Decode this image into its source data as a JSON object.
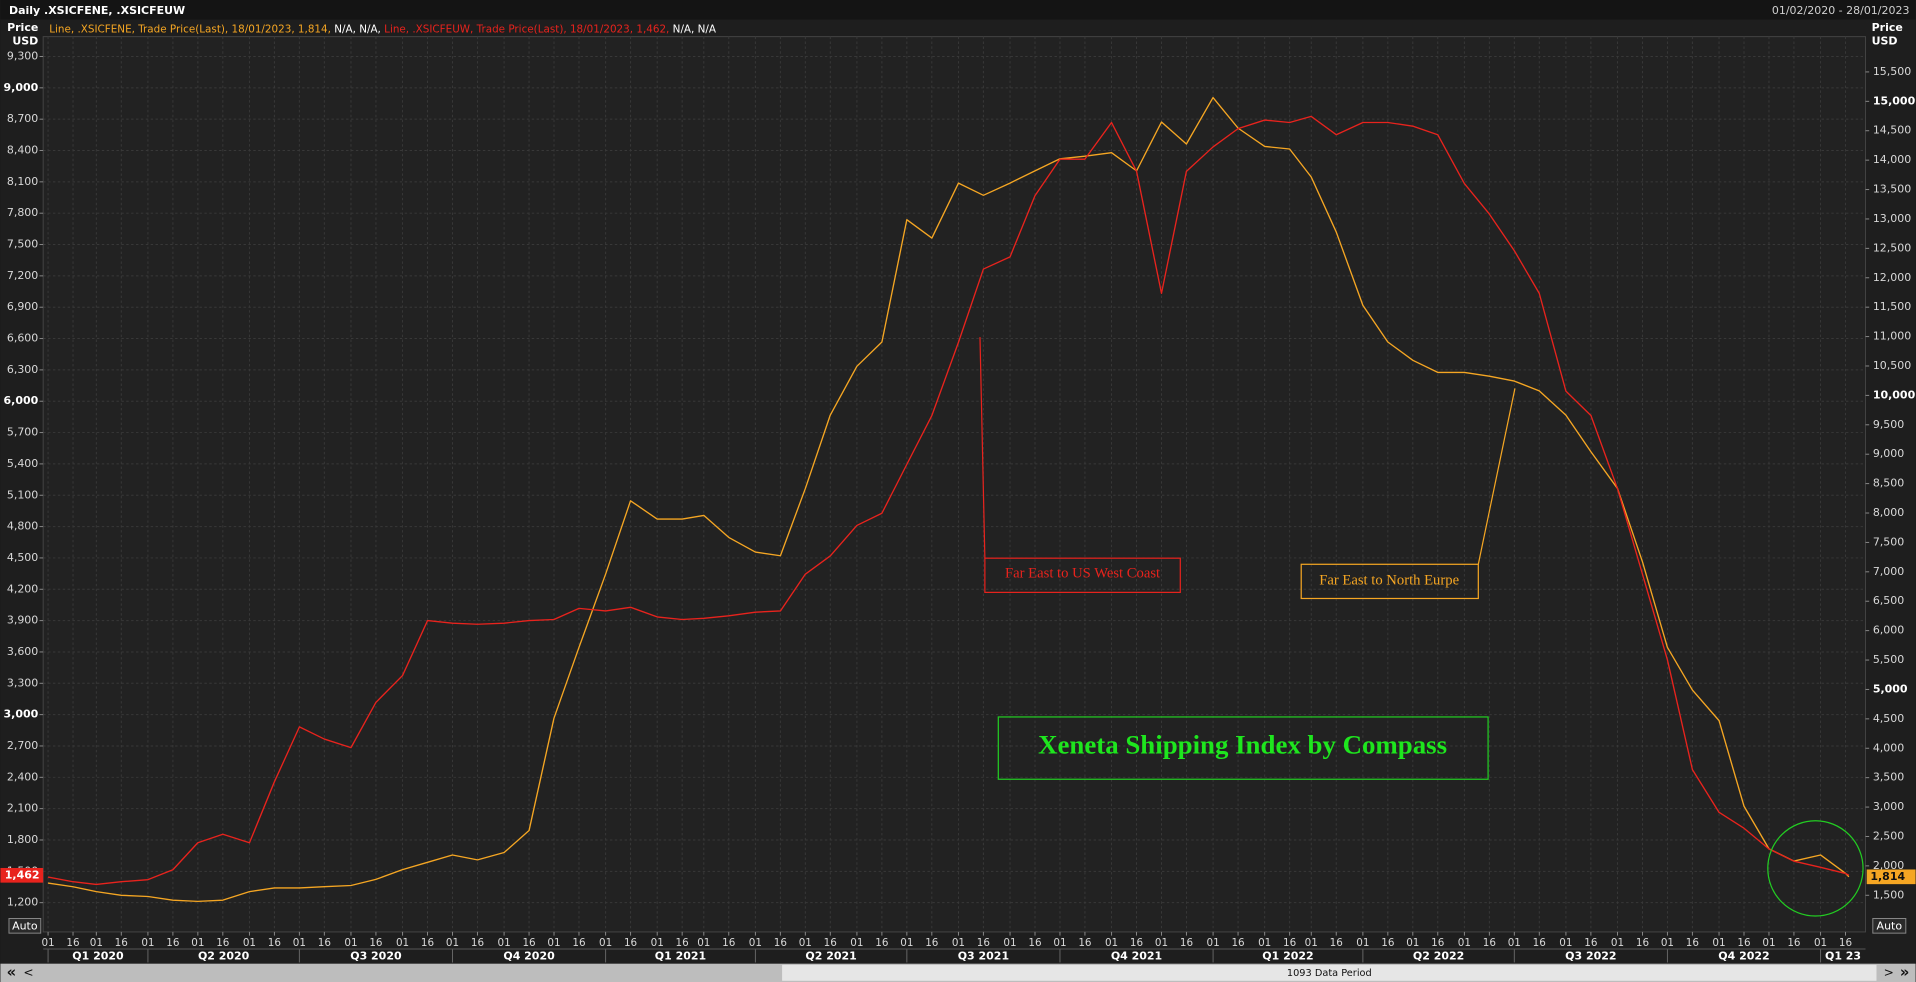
{
  "chart_data": {
    "type": "line",
    "title": "Daily .XSICFENE, .XSICFEUW",
    "date_range": "01/02/2020 - 28/01/2023",
    "ylabel": [
      "Price",
      "USD"
    ],
    "y2label": [
      "Price",
      "USD"
    ],
    "grid": true,
    "xlim": [
      "2020-02-01",
      "2023-01-28"
    ],
    "ylim": [
      920,
      9490
    ],
    "y2lim": [
      877,
      16100
    ],
    "x": [
      "2020-02-01",
      "2020-02-16",
      "2020-03-01",
      "2020-03-16",
      "2020-04-01",
      "2020-04-16",
      "2020-05-01",
      "2020-05-16",
      "2020-06-01",
      "2020-06-16",
      "2020-07-01",
      "2020-07-16",
      "2020-08-01",
      "2020-08-16",
      "2020-09-01",
      "2020-09-16",
      "2020-10-01",
      "2020-10-16",
      "2020-11-01",
      "2020-11-16",
      "2020-12-01",
      "2020-12-16",
      "2021-01-01",
      "2021-01-16",
      "2021-02-01",
      "2021-02-16",
      "2021-03-01",
      "2021-03-16",
      "2021-04-01",
      "2021-04-16",
      "2021-05-01",
      "2021-05-16",
      "2021-06-01",
      "2021-06-16",
      "2021-07-01",
      "2021-07-16",
      "2021-08-01",
      "2021-08-16",
      "2021-09-01",
      "2021-09-16",
      "2021-10-01",
      "2021-10-16",
      "2021-11-01",
      "2021-11-16",
      "2021-12-01",
      "2021-12-16",
      "2022-01-01",
      "2022-01-16",
      "2022-02-01",
      "2022-02-16",
      "2022-03-01",
      "2022-03-16",
      "2022-04-01",
      "2022-04-16",
      "2022-05-01",
      "2022-05-16",
      "2022-06-01",
      "2022-06-16",
      "2022-07-01",
      "2022-07-16",
      "2022-08-01",
      "2022-08-16",
      "2022-09-01",
      "2022-09-16",
      "2022-10-01",
      "2022-10-16",
      "2022-11-01",
      "2022-11-16",
      "2022-12-01",
      "2022-12-16",
      "2023-01-01",
      "2023-01-16",
      "2023-01-18"
    ],
    "series": [
      {
        "name": "Line, .XSICFENE, Trade Price(Last), 18/01/2023, 1,814,",
        "legend_suffix": "N/A, N/A,",
        "color": "#f5a623",
        "axis": "y2",
        "last_label": "1,814",
        "values": [
          1708,
          1645,
          1562,
          1500,
          1479,
          1417,
          1396,
          1417,
          1562,
          1625,
          1625,
          1645,
          1666,
          1770,
          1936,
          2061,
          2185,
          2102,
          2227,
          2601,
          4512,
          5716,
          6963,
          8209,
          7897,
          7897,
          7959,
          7586,
          7336,
          7274,
          8416,
          9663,
          10494,
          10909,
          12986,
          12675,
          13609,
          13402,
          13609,
          13817,
          14024,
          14066,
          14128,
          13817,
          14648,
          14274,
          15063,
          14544,
          14232,
          14190,
          13713,
          12778,
          11532,
          10909,
          10597,
          10390,
          10390,
          10327,
          10244,
          10078,
          9663,
          9040,
          8416,
          7170,
          5716,
          4989,
          4470,
          3016,
          2289,
          2082,
          2185,
          1874,
          1814
        ]
      },
      {
        "name": "Line, .XSICFEUW, Trade Price(Last), 18/01/2023, 1,462,",
        "legend_suffix": "N/A, N/A",
        "color": "#e8231d",
        "last_label": "1,462",
        "values": [
          1445,
          1400,
          1375,
          1400,
          1420,
          1515,
          1773,
          1855,
          1773,
          2357,
          2883,
          2766,
          2684,
          3117,
          3374,
          3900,
          3876,
          3865,
          3876,
          3900,
          3911,
          4017,
          3993,
          4028,
          3935,
          3911,
          3923,
          3946,
          3981,
          3993,
          4344,
          4519,
          4811,
          4928,
          5396,
          5863,
          6565,
          7265,
          7382,
          7967,
          8317,
          8317,
          8668,
          8200,
          7032,
          8200,
          8434,
          8610,
          8691,
          8668,
          8726,
          8551,
          8668,
          8668,
          8633,
          8551,
          8084,
          7792,
          7441,
          7032,
          6097,
          5863,
          5162,
          4344,
          3526,
          2474,
          2065,
          1913,
          1714,
          1597,
          1539,
          1480,
          1462
        ]
      }
    ],
    "yticks": [
      {
        "value": 1200,
        "label": "1,200"
      },
      {
        "value": 1500,
        "label": "1,500"
      },
      {
        "value": 1800,
        "label": "1,800"
      },
      {
        "value": 2100,
        "label": "2,100"
      },
      {
        "value": 2400,
        "label": "2,400"
      },
      {
        "value": 2700,
        "label": "2,700"
      },
      {
        "value": 3000,
        "label": "3,000",
        "bold": true
      },
      {
        "value": 3300,
        "label": "3,300"
      },
      {
        "value": 3600,
        "label": "3,600"
      },
      {
        "value": 3900,
        "label": "3,900"
      },
      {
        "value": 4200,
        "label": "4,200"
      },
      {
        "value": 4500,
        "label": "4,500"
      },
      {
        "value": 4800,
        "label": "4,800"
      },
      {
        "value": 5100,
        "label": "5,100"
      },
      {
        "value": 5400,
        "label": "5,400"
      },
      {
        "value": 5700,
        "label": "5,700"
      },
      {
        "value": 6000,
        "label": "6,000",
        "bold": true
      },
      {
        "value": 6300,
        "label": "6,300"
      },
      {
        "value": 6600,
        "label": "6,600"
      },
      {
        "value": 6900,
        "label": "6,900"
      },
      {
        "value": 7200,
        "label": "7,200"
      },
      {
        "value": 7500,
        "label": "7,500"
      },
      {
        "value": 7800,
        "label": "7,800"
      },
      {
        "value": 8100,
        "label": "8,100"
      },
      {
        "value": 8400,
        "label": "8,400"
      },
      {
        "value": 8700,
        "label": "8,700"
      },
      {
        "value": 9000,
        "label": "9,000",
        "bold": true
      },
      {
        "value": 9300,
        "label": "9,300"
      }
    ],
    "y2ticks": [
      {
        "value": 1500,
        "label": "1,500"
      },
      {
        "value": 2000,
        "label": "2,000"
      },
      {
        "value": 2500,
        "label": "2,500"
      },
      {
        "value": 3000,
        "label": "3,000"
      },
      {
        "value": 3500,
        "label": "3,500"
      },
      {
        "value": 4000,
        "label": "4,000"
      },
      {
        "value": 4500,
        "label": "4,500"
      },
      {
        "value": 5000,
        "label": "5,000",
        "bold": true
      },
      {
        "value": 5500,
        "label": "5,500"
      },
      {
        "value": 6000,
        "label": "6,000"
      },
      {
        "value": 6500,
        "label": "6,500"
      },
      {
        "value": 7000,
        "label": "7,000"
      },
      {
        "value": 7500,
        "label": "7,500"
      },
      {
        "value": 8000,
        "label": "8,000"
      },
      {
        "value": 8500,
        "label": "8,500"
      },
      {
        "value": 9000,
        "label": "9,000"
      },
      {
        "value": 9500,
        "label": "9,500"
      },
      {
        "value": 10000,
        "label": "10,000",
        "bold": true
      },
      {
        "value": 10500,
        "label": "10,500"
      },
      {
        "value": 11000,
        "label": "11,000"
      },
      {
        "value": 11500,
        "label": "11,500"
      },
      {
        "value": 12000,
        "label": "12,000"
      },
      {
        "value": 12500,
        "label": "12,500"
      },
      {
        "value": 13000,
        "label": "13,000"
      },
      {
        "value": 13500,
        "label": "13,500"
      },
      {
        "value": 14000,
        "label": "14,000"
      },
      {
        "value": 14500,
        "label": "14,500"
      },
      {
        "value": 15000,
        "label": "15,000",
        "bold": true
      },
      {
        "value": 15500,
        "label": "15,500"
      }
    ],
    "xticks": [
      {
        "value": "2020-02-01",
        "label": "01"
      },
      {
        "value": "2020-02-16",
        "label": "16"
      },
      {
        "value": "2020-03-01",
        "label": "01"
      },
      {
        "value": "2020-03-16",
        "label": "16"
      },
      {
        "value": "2020-04-01",
        "label": "01"
      },
      {
        "value": "2020-04-16",
        "label": "16"
      },
      {
        "value": "2020-05-01",
        "label": "01"
      },
      {
        "value": "2020-05-16",
        "label": "16"
      },
      {
        "value": "2020-06-01",
        "label": "01"
      },
      {
        "value": "2020-06-16",
        "label": "16"
      },
      {
        "value": "2020-07-01",
        "label": "01"
      },
      {
        "value": "2020-07-16",
        "label": "16"
      },
      {
        "value": "2020-08-01",
        "label": "01"
      },
      {
        "value": "2020-08-16",
        "label": "16"
      },
      {
        "value": "2020-09-01",
        "label": "01"
      },
      {
        "value": "2020-09-16",
        "label": "16"
      },
      {
        "value": "2020-10-01",
        "label": "01"
      },
      {
        "value": "2020-10-16",
        "label": "16"
      },
      {
        "value": "2020-11-01",
        "label": "01"
      },
      {
        "value": "2020-11-16",
        "label": "16"
      },
      {
        "value": "2020-12-01",
        "label": "01"
      },
      {
        "value": "2020-12-16",
        "label": "16"
      },
      {
        "value": "2021-01-01",
        "label": "01"
      },
      {
        "value": "2021-01-16",
        "label": "16"
      },
      {
        "value": "2021-02-01",
        "label": "01"
      },
      {
        "value": "2021-02-16",
        "label": "16"
      },
      {
        "value": "2021-03-01",
        "label": "01"
      },
      {
        "value": "2021-03-16",
        "label": "16"
      },
      {
        "value": "2021-04-01",
        "label": "01"
      },
      {
        "value": "2021-04-16",
        "label": "16"
      },
      {
        "value": "2021-05-01",
        "label": "01"
      },
      {
        "value": "2021-05-16",
        "label": "16"
      },
      {
        "value": "2021-06-01",
        "label": "01"
      },
      {
        "value": "2021-06-16",
        "label": "16"
      },
      {
        "value": "2021-07-01",
        "label": "01"
      },
      {
        "value": "2021-07-16",
        "label": "16"
      },
      {
        "value": "2021-08-01",
        "label": "01"
      },
      {
        "value": "2021-08-16",
        "label": "16"
      },
      {
        "value": "2021-09-01",
        "label": "01"
      },
      {
        "value": "2021-09-16",
        "label": "16"
      },
      {
        "value": "2021-10-01",
        "label": "01"
      },
      {
        "value": "2021-10-16",
        "label": "16"
      },
      {
        "value": "2021-11-01",
        "label": "01"
      },
      {
        "value": "2021-11-16",
        "label": "16"
      },
      {
        "value": "2021-12-01",
        "label": "01"
      },
      {
        "value": "2021-12-16",
        "label": "16"
      },
      {
        "value": "2022-01-01",
        "label": "01"
      },
      {
        "value": "2022-01-16",
        "label": "16"
      },
      {
        "value": "2022-02-01",
        "label": "01"
      },
      {
        "value": "2022-02-16",
        "label": "16"
      },
      {
        "value": "2022-03-01",
        "label": "01"
      },
      {
        "value": "2022-03-16",
        "label": "16"
      },
      {
        "value": "2022-04-01",
        "label": "01"
      },
      {
        "value": "2022-04-16",
        "label": "16"
      },
      {
        "value": "2022-05-01",
        "label": "01"
      },
      {
        "value": "2022-05-16",
        "label": "16"
      },
      {
        "value": "2022-06-01",
        "label": "01"
      },
      {
        "value": "2022-06-16",
        "label": "16"
      },
      {
        "value": "2022-07-01",
        "label": "01"
      },
      {
        "value": "2022-07-16",
        "label": "16"
      },
      {
        "value": "2022-08-01",
        "label": "01"
      },
      {
        "value": "2022-08-16",
        "label": "16"
      },
      {
        "value": "2022-09-01",
        "label": "01"
      },
      {
        "value": "2022-09-16",
        "label": "16"
      },
      {
        "value": "2022-10-01",
        "label": "01"
      },
      {
        "value": "2022-10-16",
        "label": "16"
      },
      {
        "value": "2022-11-01",
        "label": "01"
      },
      {
        "value": "2022-11-16",
        "label": "16"
      },
      {
        "value": "2022-12-01",
        "label": "01"
      },
      {
        "value": "2022-12-16",
        "label": "16"
      },
      {
        "value": "2023-01-01",
        "label": "01"
      },
      {
        "value": "2023-01-16",
        "label": "16"
      }
    ],
    "quarters": [
      {
        "value": "2020-02-01",
        "label": "Q1 2020"
      },
      {
        "value": "2020-04-01",
        "label": "Q2 2020"
      },
      {
        "value": "2020-07-01",
        "label": "Q3 2020"
      },
      {
        "value": "2020-10-01",
        "label": "Q4 2020"
      },
      {
        "value": "2021-01-01",
        "label": "Q1 2021"
      },
      {
        "value": "2021-04-01",
        "label": "Q2 2021"
      },
      {
        "value": "2021-07-01",
        "label": "Q3 2021"
      },
      {
        "value": "2021-10-01",
        "label": "Q4 2021"
      },
      {
        "value": "2022-01-01",
        "label": "Q1 2022"
      },
      {
        "value": "2022-04-01",
        "label": "Q2 2022"
      },
      {
        "value": "2022-07-01",
        "label": "Q3 2022"
      },
      {
        "value": "2022-10-01",
        "label": "Q4 2022"
      },
      {
        "value": "2023-01-01",
        "label": "Q1 23"
      }
    ],
    "annotations": [
      "Far East to US West Coast",
      "Far East to North Eurpe",
      "Xeneta Shipping Index by Compass"
    ],
    "buttons": {
      "auto_left": "Auto",
      "auto_right": "Auto"
    },
    "scrollbar": {
      "label": "1093 Data Period",
      "first": "«",
      "prev": "<",
      "next": ">",
      "last": "»"
    }
  }
}
